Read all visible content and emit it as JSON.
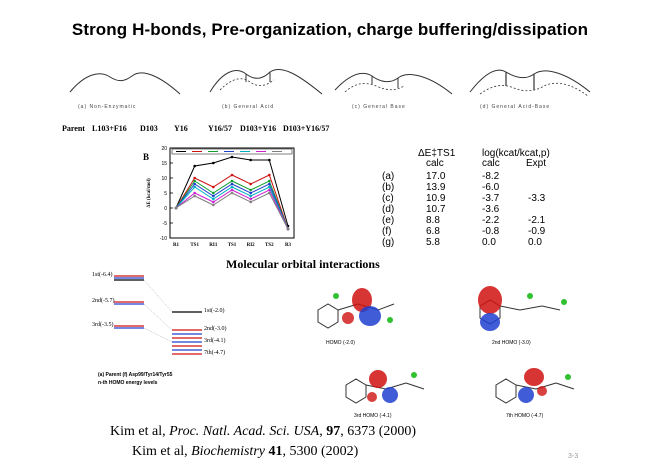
{
  "title": "Strong H-bonds, Pre-organization, charge buffering/dissipation",
  "curve_captions": [
    "(a) Non-Enzymatic",
    "(b) General Acid",
    "(c) General Base",
    "(d) General Acid-Base"
  ],
  "mutant_labels": [
    "Parent",
    "L103+F16",
    "D103",
    "Y16",
    "Y16/57",
    "D103+Y16",
    "D103+Y16/57"
  ],
  "chart_panel_label": "B",
  "chart_data": {
    "type": "line",
    "title": "",
    "ylabel": "ΔE (kcal/mol)",
    "categories": [
      "R1",
      "TS1",
      "RI1",
      "TS1",
      "RI2",
      "TS2",
      "R3"
    ],
    "ylim": [
      -10,
      20
    ],
    "yticks": [
      20,
      15,
      10,
      5,
      0,
      -5,
      -10
    ],
    "series": [
      {
        "color": "#000000",
        "values": [
          0,
          14,
          15,
          17,
          16,
          16,
          -6
        ]
      },
      {
        "color": "#d01010",
        "values": [
          0,
          10,
          7,
          11,
          8,
          11,
          -7
        ]
      },
      {
        "color": "#10a030",
        "values": [
          0,
          9,
          5,
          9,
          6,
          9,
          -7
        ]
      },
      {
        "color": "#2040d0",
        "values": [
          0,
          8,
          4,
          8,
          5,
          8,
          -7
        ]
      },
      {
        "color": "#00b0c0",
        "values": [
          0,
          7,
          3,
          7,
          4,
          7,
          -7
        ]
      },
      {
        "color": "#d020d0",
        "values": [
          0,
          5,
          2,
          6,
          3,
          6,
          -7
        ]
      },
      {
        "color": "#808080",
        "values": [
          0,
          4,
          1,
          5,
          2,
          5,
          -7
        ]
      }
    ]
  },
  "energy_table": {
    "header1": "ΔE‡TS1",
    "header1_sub": "calc",
    "header2": "log(kcat/kcat,p)",
    "header2_sub_calc": "calc",
    "header2_sub_expt": "Expt",
    "rows": [
      {
        "label": "(a)",
        "e": "17.0",
        "calc": "-8.2",
        "expt": ""
      },
      {
        "label": "(b)",
        "e": "13.9",
        "calc": "-6.0",
        "expt": ""
      },
      {
        "label": "(c)",
        "e": "10.9",
        "calc": "-3.7",
        "expt": "-3.3"
      },
      {
        "label": "(d)",
        "e": "10.7",
        "calc": "-3.6",
        "expt": ""
      },
      {
        "label": "(e)",
        "e": "8.8",
        "calc": "-2.2",
        "expt": "-2.1"
      },
      {
        "label": "(f)",
        "e": "6.8",
        "calc": "-0.8",
        "expt": "-0.9"
      },
      {
        "label": "(g)",
        "e": "5.8",
        "calc": "0.0",
        "expt": "0.0"
      }
    ]
  },
  "mo_title": "Molecular orbital interactions",
  "level_labels_left": [
    "1st(-6.4)",
    "2nd(-5.7)",
    "3rd(-3.5)"
  ],
  "level_labels_right": [
    "1st(-2.0)",
    "2nd(-3.0)",
    "3rd(-4.1)",
    "7th(-4.7)"
  ],
  "level_caption_1": "(a) Parent   (f) Asp99/Tyr14/Tyr55",
  "level_caption_2": "n-th HOMO energy levels",
  "homo_captions": [
    "HOMO (-2.0)",
    "2nd HOMO (-3.0)",
    "3rd HOMO (-4.1)",
    "7th HOMO (-4.7)"
  ],
  "references": [
    {
      "authors": "Kim et al, ",
      "journal": "Proc. Natl. Acad. Sci. USA",
      "volume": "97",
      "pages": ", 6373 (2000)"
    },
    {
      "authors": "Kim et al, ",
      "journal": "Biochemistry",
      "volume": "41",
      "pages": ", 5300 (2002)"
    }
  ],
  "page_number": "3-3"
}
